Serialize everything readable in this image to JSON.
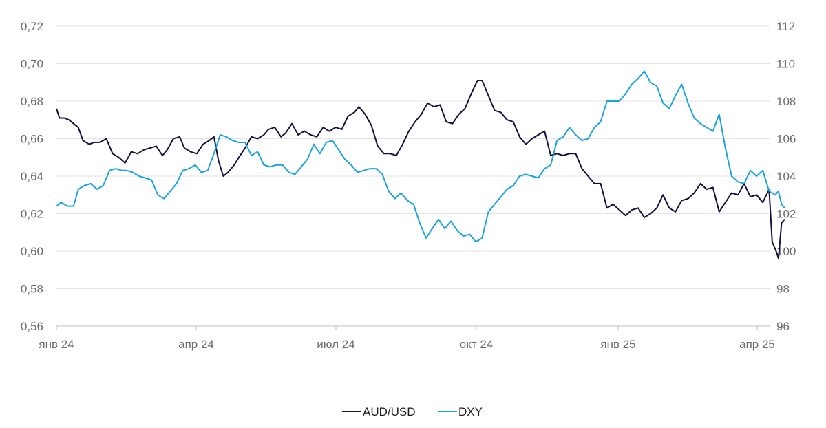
{
  "chart_data": {
    "type": "line",
    "title": "",
    "xlabel": "",
    "ylabel": "",
    "x_ticks": [
      "янв 24",
      "апр 24",
      "июл 24",
      "окт 24",
      "янв 25",
      "апр 25"
    ],
    "x_range": [
      "2024-01-01",
      "2025-04-01"
    ],
    "y_left": {
      "ticks": [
        "0,56",
        "0,58",
        "0,60",
        "0,62",
        "0,64",
        "0,66",
        "0,68",
        "0,70",
        "0,72"
      ],
      "range": [
        0.56,
        0.72
      ]
    },
    "y_right": {
      "ticks": [
        "96",
        "98",
        "100",
        "102",
        "104",
        "106",
        "108",
        "110",
        "112"
      ],
      "range": [
        96,
        112
      ]
    },
    "grid": true,
    "legend_position": "bottom",
    "series": [
      {
        "name": "AUD/USD",
        "axis": "left",
        "color": "#13103f",
        "points": [
          [
            "2024-01-01",
            0.676
          ],
          [
            "2024-01-03",
            0.671
          ],
          [
            "2024-01-06",
            0.671
          ],
          [
            "2024-01-09",
            0.67
          ],
          [
            "2024-01-12",
            0.668
          ],
          [
            "2024-01-15",
            0.666
          ],
          [
            "2024-01-18",
            0.659
          ],
          [
            "2024-01-22",
            0.657
          ],
          [
            "2024-01-25",
            0.658
          ],
          [
            "2024-01-29",
            0.658
          ],
          [
            "2024-02-02",
            0.66
          ],
          [
            "2024-02-06",
            0.652
          ],
          [
            "2024-02-10",
            0.65
          ],
          [
            "2024-02-14",
            0.647
          ],
          [
            "2024-02-18",
            0.653
          ],
          [
            "2024-02-22",
            0.652
          ],
          [
            "2024-02-26",
            0.654
          ],
          [
            "2024-03-01",
            0.655
          ],
          [
            "2024-03-05",
            0.656
          ],
          [
            "2024-03-09",
            0.651
          ],
          [
            "2024-03-12",
            0.654
          ],
          [
            "2024-03-16",
            0.66
          ],
          [
            "2024-03-20",
            0.661
          ],
          [
            "2024-03-23",
            0.655
          ],
          [
            "2024-03-27",
            0.653
          ],
          [
            "2024-03-31",
            0.652
          ],
          [
            "2024-04-04",
            0.657
          ],
          [
            "2024-04-08",
            0.659
          ],
          [
            "2024-04-11",
            0.661
          ],
          [
            "2024-04-14",
            0.648
          ],
          [
            "2024-04-17",
            0.64
          ],
          [
            "2024-04-20",
            0.642
          ],
          [
            "2024-04-24",
            0.646
          ],
          [
            "2024-04-27",
            0.65
          ],
          [
            "2024-05-01",
            0.655
          ],
          [
            "2024-05-05",
            0.661
          ],
          [
            "2024-05-09",
            0.66
          ],
          [
            "2024-05-13",
            0.662
          ],
          [
            "2024-05-16",
            0.665
          ],
          [
            "2024-05-20",
            0.666
          ],
          [
            "2024-05-24",
            0.661
          ],
          [
            "2024-05-27",
            0.663
          ],
          [
            "2024-05-31",
            0.668
          ],
          [
            "2024-06-04",
            0.662
          ],
          [
            "2024-06-08",
            0.664
          ],
          [
            "2024-06-12",
            0.662
          ],
          [
            "2024-06-16",
            0.661
          ],
          [
            "2024-06-20",
            0.666
          ],
          [
            "2024-06-24",
            0.664
          ],
          [
            "2024-06-28",
            0.666
          ],
          [
            "2024-07-02",
            0.665
          ],
          [
            "2024-07-06",
            0.672
          ],
          [
            "2024-07-10",
            0.674
          ],
          [
            "2024-07-13",
            0.677
          ],
          [
            "2024-07-17",
            0.673
          ],
          [
            "2024-07-21",
            0.667
          ],
          [
            "2024-07-25",
            0.656
          ],
          [
            "2024-07-29",
            0.652
          ],
          [
            "2024-08-02",
            0.652
          ],
          [
            "2024-08-06",
            0.651
          ],
          [
            "2024-08-10",
            0.657
          ],
          [
            "2024-08-14",
            0.664
          ],
          [
            "2024-08-18",
            0.669
          ],
          [
            "2024-08-22",
            0.673
          ],
          [
            "2024-08-26",
            0.679
          ],
          [
            "2024-08-30",
            0.677
          ],
          [
            "2024-09-03",
            0.678
          ],
          [
            "2024-09-07",
            0.669
          ],
          [
            "2024-09-11",
            0.668
          ],
          [
            "2024-09-15",
            0.673
          ],
          [
            "2024-09-19",
            0.676
          ],
          [
            "2024-09-23",
            0.684
          ],
          [
            "2024-09-27",
            0.691
          ],
          [
            "2024-09-30",
            0.691
          ],
          [
            "2024-10-04",
            0.683
          ],
          [
            "2024-10-08",
            0.675
          ],
          [
            "2024-10-12",
            0.674
          ],
          [
            "2024-10-16",
            0.67
          ],
          [
            "2024-10-20",
            0.669
          ],
          [
            "2024-10-24",
            0.661
          ],
          [
            "2024-10-28",
            0.657
          ],
          [
            "2024-11-01",
            0.66
          ],
          [
            "2024-11-05",
            0.662
          ],
          [
            "2024-11-09",
            0.664
          ],
          [
            "2024-11-13",
            0.651
          ],
          [
            "2024-11-17",
            0.652
          ],
          [
            "2024-11-21",
            0.651
          ],
          [
            "2024-11-25",
            0.652
          ],
          [
            "2024-11-29",
            0.652
          ],
          [
            "2024-12-03",
            0.644
          ],
          [
            "2024-12-07",
            0.64
          ],
          [
            "2024-12-11",
            0.636
          ],
          [
            "2024-12-15",
            0.636
          ],
          [
            "2024-12-19",
            0.623
          ],
          [
            "2024-12-23",
            0.625
          ],
          [
            "2024-12-27",
            0.622
          ],
          [
            "2024-12-31",
            0.619
          ],
          [
            "2025-01-04",
            0.622
          ],
          [
            "2025-01-08",
            0.623
          ],
          [
            "2025-01-12",
            0.618
          ],
          [
            "2025-01-16",
            0.62
          ],
          [
            "2025-01-20",
            0.623
          ],
          [
            "2025-01-24",
            0.63
          ],
          [
            "2025-01-28",
            0.623
          ],
          [
            "2025-02-01",
            0.621
          ],
          [
            "2025-02-05",
            0.627
          ],
          [
            "2025-02-09",
            0.628
          ],
          [
            "2025-02-13",
            0.631
          ],
          [
            "2025-02-17",
            0.636
          ],
          [
            "2025-02-21",
            0.633
          ],
          [
            "2025-02-25",
            0.634
          ],
          [
            "2025-03-01",
            0.621
          ],
          [
            "2025-03-05",
            0.626
          ],
          [
            "2025-03-09",
            0.631
          ],
          [
            "2025-03-13",
            0.63
          ],
          [
            "2025-03-17",
            0.636
          ],
          [
            "2025-03-21",
            0.629
          ],
          [
            "2025-03-25",
            0.63
          ],
          [
            "2025-03-29",
            0.626
          ],
          [
            "2025-04-02",
            0.633
          ],
          [
            "2025-04-04",
            0.605
          ],
          [
            "2025-04-07",
            0.599
          ],
          [
            "2025-04-08",
            0.596
          ],
          [
            "2025-04-10",
            0.615
          ],
          [
            "2025-04-12",
            0.617
          ]
        ]
      },
      {
        "name": "DXY",
        "axis": "right",
        "color": "#1aa3e0",
        "points": [
          [
            "2024-01-01",
            102.4
          ],
          [
            "2024-01-04",
            102.6
          ],
          [
            "2024-01-08",
            102.4
          ],
          [
            "2024-01-12",
            102.4
          ],
          [
            "2024-01-15",
            103.3
          ],
          [
            "2024-01-19",
            103.5
          ],
          [
            "2024-01-23",
            103.6
          ],
          [
            "2024-01-27",
            103.3
          ],
          [
            "2024-01-31",
            103.5
          ],
          [
            "2024-02-04",
            104.3
          ],
          [
            "2024-02-08",
            104.4
          ],
          [
            "2024-02-12",
            104.3
          ],
          [
            "2024-02-15",
            104.3
          ],
          [
            "2024-02-19",
            104.2
          ],
          [
            "2024-02-23",
            104.0
          ],
          [
            "2024-02-27",
            103.9
          ],
          [
            "2024-03-02",
            103.8
          ],
          [
            "2024-03-06",
            103.0
          ],
          [
            "2024-03-10",
            102.8
          ],
          [
            "2024-03-14",
            103.2
          ],
          [
            "2024-03-18",
            103.6
          ],
          [
            "2024-03-22",
            104.3
          ],
          [
            "2024-03-26",
            104.4
          ],
          [
            "2024-03-30",
            104.6
          ],
          [
            "2024-04-03",
            104.2
          ],
          [
            "2024-04-07",
            104.3
          ],
          [
            "2024-04-11",
            105.2
          ],
          [
            "2024-04-15",
            106.2
          ],
          [
            "2024-04-19",
            106.1
          ],
          [
            "2024-04-23",
            105.9
          ],
          [
            "2024-04-27",
            105.8
          ],
          [
            "2024-05-01",
            105.8
          ],
          [
            "2024-05-05",
            105.1
          ],
          [
            "2024-05-09",
            105.3
          ],
          [
            "2024-05-13",
            104.6
          ],
          [
            "2024-05-17",
            104.5
          ],
          [
            "2024-05-21",
            104.6
          ],
          [
            "2024-05-25",
            104.6
          ],
          [
            "2024-05-29",
            104.2
          ],
          [
            "2024-06-02",
            104.1
          ],
          [
            "2024-06-06",
            104.5
          ],
          [
            "2024-06-10",
            104.9
          ],
          [
            "2024-06-14",
            105.7
          ],
          [
            "2024-06-18",
            105.2
          ],
          [
            "2024-06-22",
            105.8
          ],
          [
            "2024-06-26",
            105.9
          ],
          [
            "2024-06-30",
            105.4
          ],
          [
            "2024-07-04",
            104.9
          ],
          [
            "2024-07-08",
            104.6
          ],
          [
            "2024-07-12",
            104.2
          ],
          [
            "2024-07-16",
            104.3
          ],
          [
            "2024-07-20",
            104.4
          ],
          [
            "2024-07-24",
            104.4
          ],
          [
            "2024-07-28",
            104.1
          ],
          [
            "2024-08-01",
            103.2
          ],
          [
            "2024-08-05",
            102.8
          ],
          [
            "2024-08-09",
            103.1
          ],
          [
            "2024-08-13",
            102.7
          ],
          [
            "2024-08-17",
            102.5
          ],
          [
            "2024-08-21",
            101.5
          ],
          [
            "2024-08-25",
            100.7
          ],
          [
            "2024-08-29",
            101.2
          ],
          [
            "2024-09-02",
            101.7
          ],
          [
            "2024-09-06",
            101.2
          ],
          [
            "2024-09-10",
            101.6
          ],
          [
            "2024-09-14",
            101.1
          ],
          [
            "2024-09-18",
            100.8
          ],
          [
            "2024-09-22",
            100.9
          ],
          [
            "2024-09-26",
            100.5
          ],
          [
            "2024-09-30",
            100.7
          ],
          [
            "2024-10-04",
            102.1
          ],
          [
            "2024-10-08",
            102.5
          ],
          [
            "2024-10-12",
            102.9
          ],
          [
            "2024-10-16",
            103.3
          ],
          [
            "2024-10-20",
            103.5
          ],
          [
            "2024-10-24",
            104.0
          ],
          [
            "2024-10-28",
            104.1
          ],
          [
            "2024-11-01",
            104.0
          ],
          [
            "2024-11-05",
            103.9
          ],
          [
            "2024-11-09",
            104.4
          ],
          [
            "2024-11-13",
            104.6
          ],
          [
            "2024-11-17",
            105.9
          ],
          [
            "2024-11-21",
            106.1
          ],
          [
            "2024-11-25",
            106.6
          ],
          [
            "2024-11-29",
            106.2
          ],
          [
            "2024-12-03",
            105.9
          ],
          [
            "2024-12-07",
            106.0
          ],
          [
            "2024-12-11",
            106.6
          ],
          [
            "2024-12-15",
            106.9
          ],
          [
            "2024-12-19",
            108.0
          ],
          [
            "2024-12-23",
            108.0
          ],
          [
            "2024-12-27",
            108.0
          ],
          [
            "2024-12-31",
            108.4
          ],
          [
            "2025-01-04",
            108.9
          ],
          [
            "2025-01-08",
            109.2
          ],
          [
            "2025-01-12",
            109.6
          ],
          [
            "2025-01-16",
            109.0
          ],
          [
            "2025-01-20",
            108.8
          ],
          [
            "2025-01-24",
            107.9
          ],
          [
            "2025-01-28",
            107.6
          ],
          [
            "2025-02-01",
            108.3
          ],
          [
            "2025-02-05",
            108.9
          ],
          [
            "2025-02-09",
            107.9
          ],
          [
            "2025-02-13",
            107.1
          ],
          [
            "2025-02-17",
            106.8
          ],
          [
            "2025-02-21",
            106.6
          ],
          [
            "2025-02-25",
            106.4
          ],
          [
            "2025-03-01",
            107.3
          ],
          [
            "2025-03-05",
            105.5
          ],
          [
            "2025-03-09",
            104.0
          ],
          [
            "2025-03-13",
            103.7
          ],
          [
            "2025-03-17",
            103.6
          ],
          [
            "2025-03-21",
            104.3
          ],
          [
            "2025-03-25",
            104.0
          ],
          [
            "2025-03-29",
            104.3
          ],
          [
            "2025-04-02",
            103.2
          ],
          [
            "2025-04-06",
            103.0
          ],
          [
            "2025-04-08",
            103.2
          ],
          [
            "2025-04-10",
            102.5
          ],
          [
            "2025-04-12",
            102.3
          ]
        ]
      }
    ]
  }
}
